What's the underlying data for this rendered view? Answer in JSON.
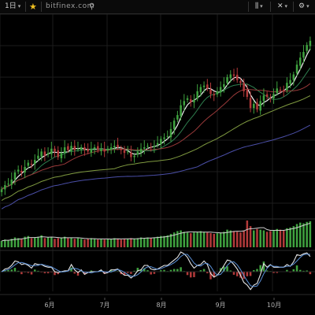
{
  "toolbar": {
    "interval_label": "1日",
    "interval_chevron": "▾",
    "favorite_icon": "star-icon",
    "star_glyph": "★",
    "watermark": "bitfinex.com",
    "pin_icon": "pin-icon",
    "pin_glyph": "⚲",
    "indicators_icon": "bar-chart-icon",
    "indicators_glyph": "⫼",
    "indicators_chevron": "▾",
    "tools_icon": "crosshair-tools-icon",
    "tools_glyph": "✕",
    "tools_chevron": "▾",
    "settings_icon": "gear-icon",
    "settings_glyph": "⚙",
    "settings_chevron": "▾"
  },
  "colors": {
    "background": "#000000",
    "grid": "#1c1c1c",
    "up": "#3fa23f",
    "down": "#b23a3a",
    "ma_fast": "#f2f2f2",
    "ma_mid": "#2f7f4f",
    "ma_slow": "#9a3a3a",
    "ma_green": "#7f9a40",
    "ma_blue": "#4b4fa8",
    "volume_ma": "#cfcfcf",
    "osc_main": "#e6e6e6",
    "osc_signal": "#5a8fd6"
  },
  "chart_data": {
    "type": "candlestick",
    "x_tick_labels": [
      "6月",
      "7月",
      "8月",
      "9月",
      "10月"
    ],
    "close_series": [
      100,
      103,
      104,
      107,
      112,
      114,
      112,
      116,
      119,
      118,
      121,
      124,
      127,
      124,
      126,
      129,
      127,
      123,
      126,
      130,
      128,
      131,
      128,
      129,
      130,
      128,
      127,
      129,
      130,
      128,
      129,
      127,
      129,
      130,
      131,
      130,
      128,
      126,
      127,
      123,
      124,
      127,
      129,
      130,
      131,
      130,
      131,
      133,
      136,
      137,
      138,
      143,
      149,
      153,
      160,
      163,
      165,
      162,
      164,
      170,
      173,
      174,
      172,
      168,
      167,
      170,
      173,
      175,
      180,
      182,
      181,
      178,
      176,
      170,
      166,
      158,
      161,
      157,
      163,
      167,
      166,
      165,
      168,
      172,
      171,
      170,
      176,
      178,
      182,
      189,
      194,
      198,
      203,
      206
    ],
    "volume_series": [
      9,
      11,
      10,
      12,
      14,
      13,
      12,
      15,
      16,
      13,
      14,
      15,
      17,
      13,
      14,
      14,
      12,
      13,
      14,
      15,
      13,
      14,
      12,
      13,
      12,
      11,
      12,
      13,
      12,
      11,
      12,
      11,
      12,
      12,
      13,
      12,
      11,
      12,
      12,
      13,
      12,
      13,
      14,
      13,
      14,
      13,
      14,
      15,
      16,
      16,
      17,
      19,
      21,
      23,
      24,
      22,
      21,
      20,
      21,
      22,
      23,
      22,
      21,
      20,
      19,
      20,
      21,
      22,
      25,
      24,
      23,
      22,
      21,
      24,
      38,
      30,
      24,
      26,
      25,
      24,
      22,
      23,
      24,
      26,
      25,
      24,
      27,
      28,
      30,
      33,
      35,
      34,
      36,
      37
    ]
  }
}
